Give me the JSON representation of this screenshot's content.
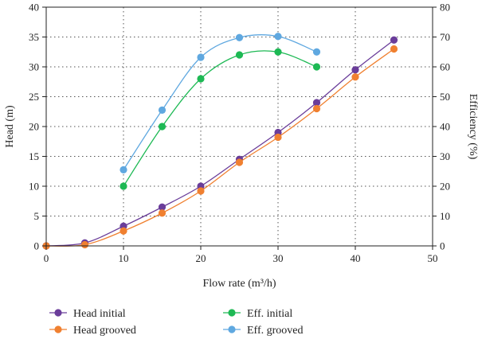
{
  "chart_data": {
    "type": "line",
    "xlabel": "Flow rate (m³/h)",
    "ylabel": "Head (m)",
    "y2label": "Efficiency (%)",
    "xlim": [
      0,
      50
    ],
    "ylim": [
      0,
      40
    ],
    "y2lim": [
      0,
      80
    ],
    "xticks": [
      "0",
      "10",
      "20",
      "30",
      "40",
      "50"
    ],
    "yticks": [
      "0",
      "5",
      "10",
      "15",
      "20",
      "25",
      "30",
      "35",
      "40"
    ],
    "y2ticks": [
      "0",
      "10",
      "20",
      "30",
      "40",
      "50",
      "60",
      "70",
      "80"
    ],
    "grid": "dotted",
    "legend_position": "bottom",
    "series": [
      {
        "name": "Head initial",
        "axis": "left",
        "color": "#6a3d9a",
        "x": [
          0,
          5,
          10,
          15,
          20,
          25,
          30,
          35,
          40,
          45
        ],
        "values": [
          0,
          0.5,
          3.3,
          6.5,
          10,
          14.5,
          19,
          24,
          29.5,
          34.5
        ]
      },
      {
        "name": "Head grooved",
        "axis": "left",
        "color": "#f08030",
        "x": [
          0,
          5,
          10,
          15,
          20,
          25,
          30,
          35,
          40,
          45
        ],
        "values": [
          0,
          0.2,
          2.5,
          5.5,
          9.2,
          14,
          18.2,
          23,
          28.3,
          33
        ]
      },
      {
        "name": "Eff. initial",
        "axis": "right",
        "color": "#1db954",
        "x": [
          10,
          15,
          20,
          25,
          30,
          35
        ],
        "values": [
          20,
          40,
          56,
          64,
          65,
          60
        ]
      },
      {
        "name": "Eff. grooved",
        "axis": "right",
        "color": "#5fa8e0",
        "x": [
          10,
          15,
          20,
          25,
          30,
          35
        ],
        "values": [
          25.5,
          45.5,
          63.2,
          69.8,
          70.2,
          65
        ]
      }
    ]
  }
}
